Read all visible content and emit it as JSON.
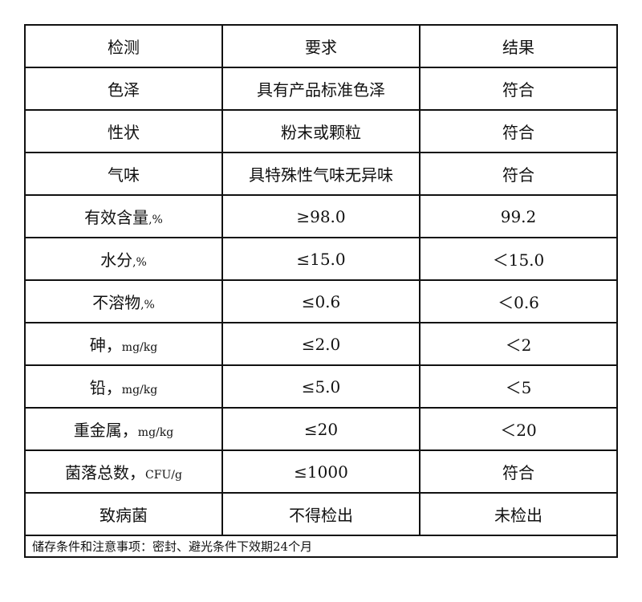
{
  "headers": [
    "检测",
    "要求",
    "结果"
  ],
  "rows": [
    {
      "item": "色泽",
      "unit": "",
      "requirement": "具有产品标准色泽",
      "result": "符合"
    },
    {
      "item": "性状",
      "unit": "",
      "requirement": "粉末或颗粒",
      "result": "符合"
    },
    {
      "item": "气味",
      "unit": "",
      "requirement": "具特殊性气味无异味",
      "result": "符合"
    },
    {
      "item": "有效含量",
      "unit": ",%",
      "requirement": "≥98.0",
      "result": "99.2"
    },
    {
      "item": "水分",
      "unit": ",%",
      "requirement": "≤15.0",
      "result": "＜15.0"
    },
    {
      "item": "不溶物",
      "unit": ",%",
      "requirement": "≤0.6",
      "result": "＜0.6"
    },
    {
      "item": "砷，",
      "unit": "mg/kg",
      "requirement": "≤2.0",
      "result": "＜2"
    },
    {
      "item": "铅，",
      "unit": "mg/kg",
      "requirement": "≤5.0",
      "result": "＜5"
    },
    {
      "item": "重金属，",
      "unit": "mg/kg",
      "requirement": "≤20",
      "result": "＜20"
    },
    {
      "item": "菌落总数，",
      "unit": "CFU/g",
      "requirement": "≤1000",
      "result": "符合"
    },
    {
      "item": "致病菌",
      "unit": "",
      "requirement": "不得检出",
      "result": "未检出"
    }
  ],
  "footer": "储存条件和注意事项：密封、避光条件下效期24个月"
}
